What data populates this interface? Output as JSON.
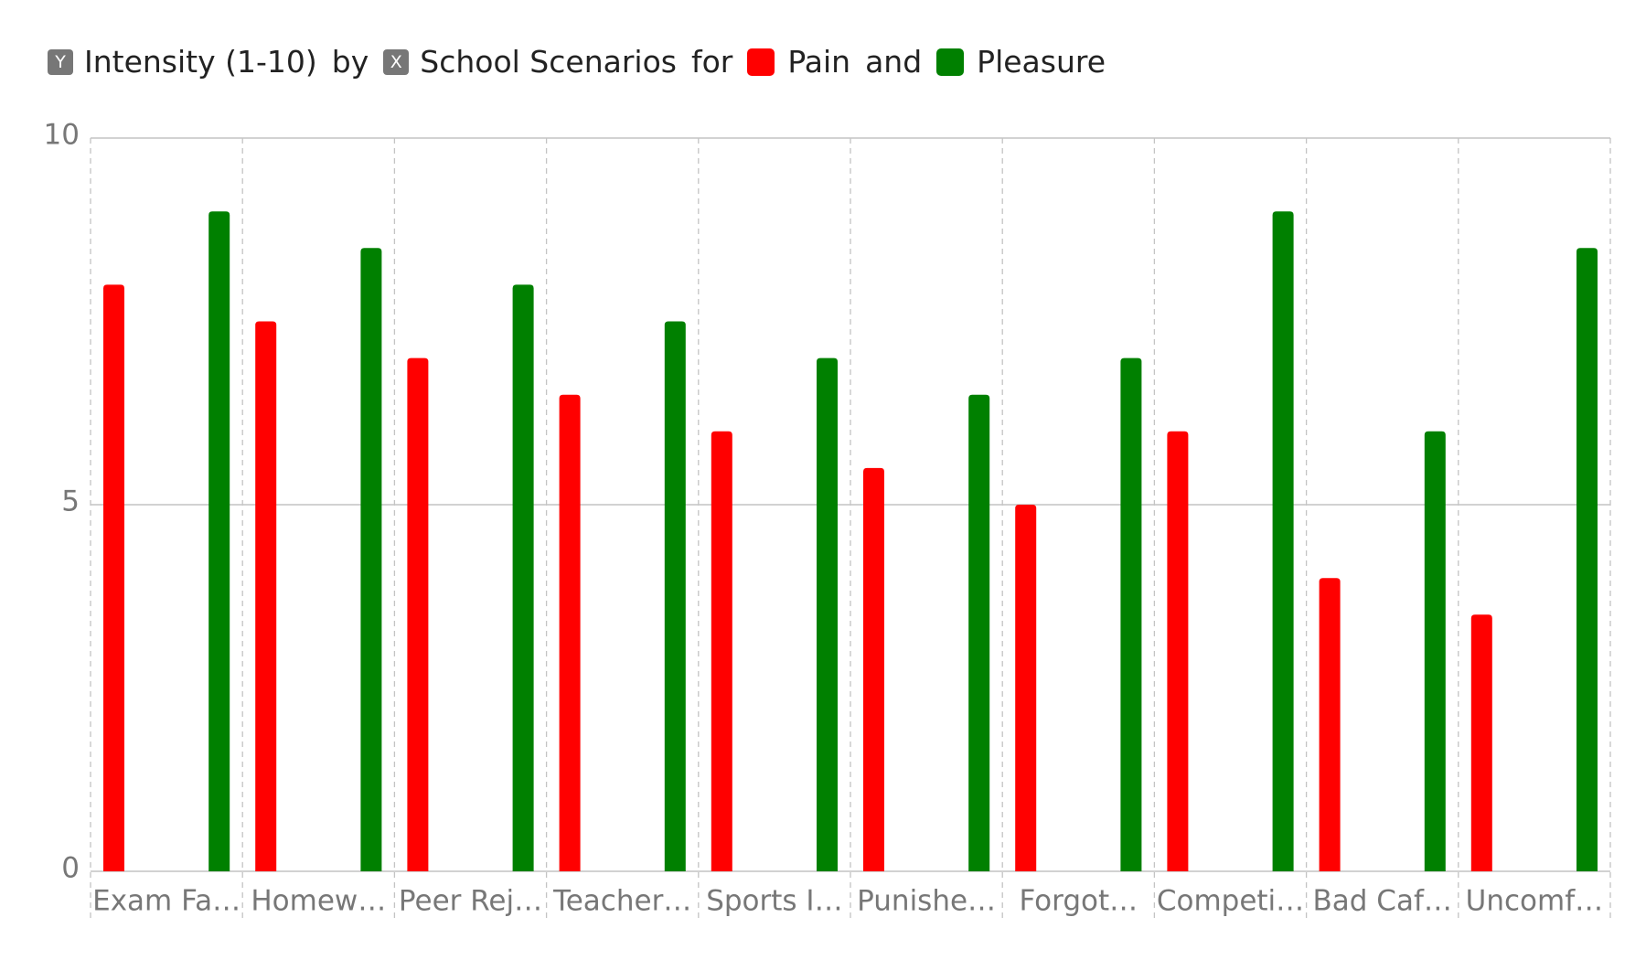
{
  "chart_data": {
    "type": "bar",
    "legend_parts": {
      "y_badge": "Y",
      "y_label": "Intensity (1-10)",
      "by": "by",
      "x_badge": "X",
      "x_label": "School Scenarios",
      "for": "for",
      "and": "and"
    },
    "categories": [
      "Exam Fa…",
      "Homew…",
      "Peer Rej…",
      "Teacher…",
      "Sports I…",
      "Punishe…",
      "Forgot…",
      "Competi…",
      "Bad Caf…",
      "Uncomf…"
    ],
    "series": [
      {
        "name": "Pain",
        "color": "#ff0000",
        "values": [
          8,
          7.5,
          7,
          6.5,
          6,
          5.5,
          5,
          6,
          4,
          3.5
        ]
      },
      {
        "name": "Pleasure",
        "color": "#008000",
        "values": [
          9,
          8.5,
          8,
          7.5,
          7,
          6.5,
          7,
          9,
          6,
          8.5
        ]
      }
    ],
    "ylim": [
      0,
      10
    ],
    "yticks": [
      0,
      5,
      10
    ],
    "grid": true
  }
}
